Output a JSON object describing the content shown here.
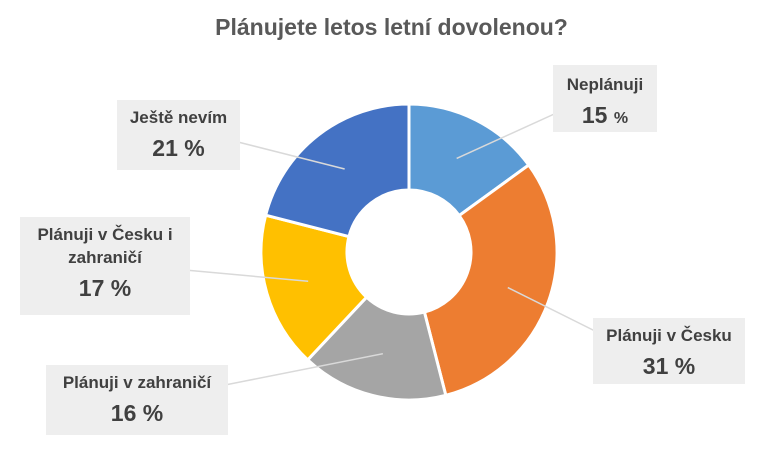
{
  "chart_data": {
    "type": "donut",
    "title": "Plánujete letos letní dovolenou?",
    "categories": [
      "Neplánuji",
      "Plánuji v Česku",
      "Plánuji v zahraničí",
      "Plánuji v Česku i zahraničí",
      "Ještě nevím"
    ],
    "values": [
      15,
      31,
      16,
      17,
      21
    ],
    "percent_labels": [
      "15",
      "31 %",
      "16 %",
      "17 %",
      "21 %"
    ],
    "percent_unit": "%",
    "colors": [
      "#5B9BD5",
      "#ED7D31",
      "#A5A5A5",
      "#FFC000",
      "#4472C4"
    ],
    "legend": "none",
    "data_labels": "callouts"
  },
  "labels": {
    "neplanuji_cat": "Neplánuji",
    "neplanuji_pct": "15",
    "neplanuji_unit": "%",
    "cesko_cat": "Plánuji v Česku",
    "cesko_pct": "31 %",
    "zahranici_cat": "Plánuji v zahraničí",
    "zahranici_pct": "16 %",
    "oboji_cat_line1": "Plánuji v Česku i",
    "oboji_cat_line2": "zahraničí",
    "oboji_pct": "17 %",
    "nevim_cat": "Ještě nevím",
    "nevim_pct": "21 %"
  }
}
